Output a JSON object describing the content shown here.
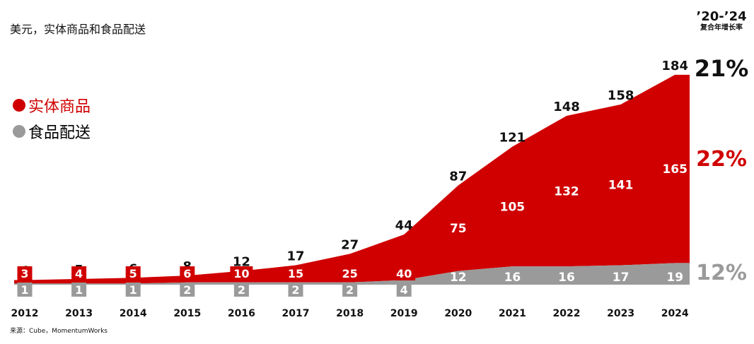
{
  "header": {
    "subtitle": "美元，实体商品和食品配送",
    "cagr_period": "’20-’24",
    "cagr_label": "复合年增长率"
  },
  "legend": [
    {
      "label": "实体商品",
      "color": "#d00000"
    },
    {
      "label": "食品配送",
      "color": "#9a9a9a"
    }
  ],
  "source": "来源：Cube，MomentumWorks",
  "chart_data": {
    "type": "area",
    "stacked": true,
    "categories": [
      "2012",
      "2013",
      "2014",
      "2015",
      "2016",
      "2017",
      "2018",
      "2019",
      "2020",
      "2021",
      "2022",
      "2023",
      "2024"
    ],
    "series": [
      {
        "name": "实体商品",
        "color": "#d00000",
        "values": [
          3,
          4,
          5,
          6,
          10,
          15,
          25,
          40,
          75,
          105,
          132,
          141,
          165
        ],
        "cagr": "22%"
      },
      {
        "name": "食品配送",
        "color": "#9a9a9a",
        "values": [
          1,
          1,
          1,
          2,
          2,
          2,
          2,
          4,
          12,
          16,
          16,
          17,
          19
        ],
        "cagr": "12%"
      }
    ],
    "totals": [
      4,
      5,
      6,
      8,
      12,
      17,
      27,
      44,
      87,
      121,
      148,
      158,
      184
    ],
    "total_cagr": "21%",
    "legend_position": "top-left",
    "grid": false
  }
}
